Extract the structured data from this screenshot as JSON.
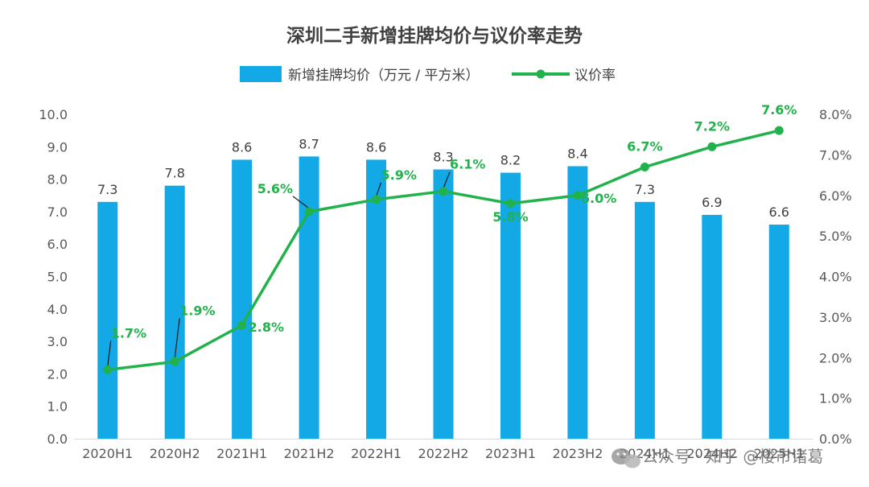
{
  "chart_data": {
    "type": "bar",
    "title": "深圳二手新增挂牌均价与议价率走势",
    "categories": [
      "2020H1",
      "2020H2",
      "2021H1",
      "2021H2",
      "2022H1",
      "2022H2",
      "2023H1",
      "2023H2",
      "2024H1",
      "2024H2",
      "2025H1"
    ],
    "x_tick_labels": [
      "2020H1",
      "2020H2",
      "2021H1",
      "2021H2",
      "2022H1",
      "2022H2",
      "2023H1",
      "2023H2",
      "2024H1",
      "2024H2",
      "2025H1"
    ],
    "series": [
      {
        "name": "新增挂牌均价（万元 / 平方米）",
        "type": "bar",
        "axis": "left",
        "color": "#12a9e6",
        "values": [
          7.3,
          7.8,
          8.6,
          8.7,
          8.6,
          8.3,
          8.2,
          8.4,
          7.3,
          6.9,
          6.6
        ],
        "labels": [
          "7.3",
          "7.8",
          "8.6",
          "8.7",
          "8.6",
          "8.3",
          "8.2",
          "8.4",
          "7.3",
          "6.9",
          "6.6"
        ]
      },
      {
        "name": "议价率",
        "type": "line",
        "axis": "right",
        "color": "#22b24c",
        "values": [
          1.7,
          1.9,
          2.8,
          5.6,
          5.9,
          6.1,
          5.8,
          6.0,
          6.7,
          7.2,
          7.6
        ],
        "labels": [
          "1.7%",
          "1.9%",
          "2.8%",
          "5.6%",
          "5.9%",
          "6.1%",
          "5.8%",
          "6.0%",
          "6.7%",
          "7.2%",
          "7.6%"
        ]
      }
    ],
    "y_left": {
      "range": [
        0,
        10
      ],
      "ticks": [
        "0.0",
        "1.0",
        "2.0",
        "3.0",
        "4.0",
        "5.0",
        "6.0",
        "7.0",
        "8.0",
        "9.0",
        "10.0"
      ]
    },
    "y_right": {
      "range": [
        0,
        8
      ],
      "ticks": [
        "0.0%",
        "1.0%",
        "2.0%",
        "3.0%",
        "4.0%",
        "5.0%",
        "6.0%",
        "7.0%",
        "8.0%"
      ]
    },
    "grid": false,
    "legend_position": "top-center"
  },
  "watermark": {
    "text": "公众号 · 知乎 @楼市诸葛"
  }
}
